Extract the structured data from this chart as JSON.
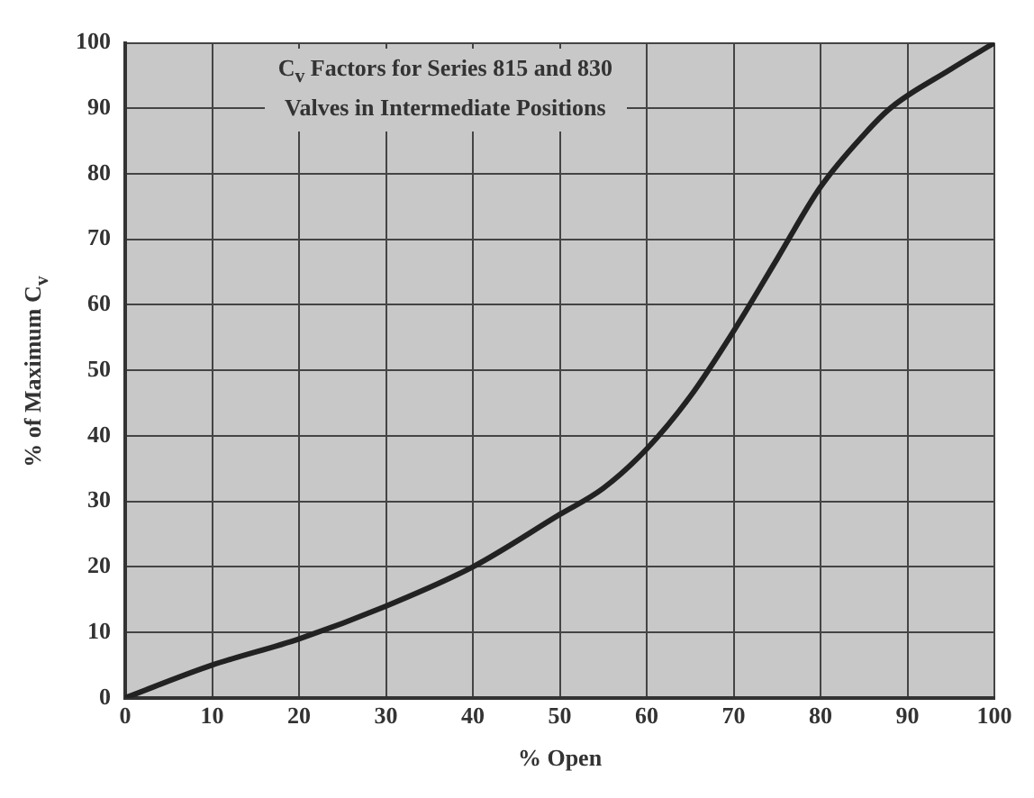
{
  "chart_data": {
    "type": "line",
    "title": "C$_{v}$ Factors for Series 815 and 830 Valves in Intermediate Positions",
    "xlabel": "% Open",
    "ylabel": "% of Maximum C$_{v}$",
    "x": [
      0,
      10,
      20,
      30,
      40,
      50,
      55,
      60,
      65,
      70,
      75,
      80,
      85,
      88,
      95,
      100
    ],
    "series": [
      {
        "color": "#222222",
        "values": [
          0,
          5,
          9,
          14,
          20,
          28,
          32,
          38,
          46,
          56,
          67,
          78,
          86,
          90,
          96,
          100
        ]
      }
    ],
    "xlim": [
      0,
      100
    ],
    "ylim": [
      0,
      100
    ],
    "xticks": [
      0,
      10,
      20,
      30,
      40,
      50,
      60,
      70,
      80,
      90,
      100
    ],
    "yticks": [
      0,
      10,
      20,
      30,
      40,
      50,
      60,
      70,
      80,
      90,
      100
    ],
    "grid": true,
    "legend": false,
    "marker": "none",
    "line_style": "solid"
  }
}
